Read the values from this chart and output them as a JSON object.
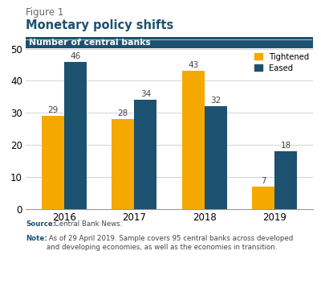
{
  "figure_label": "Figure 1",
  "title": "Monetary policy shifts",
  "chart_label": "Number of central banks",
  "years": [
    "2016",
    "2017",
    "2018",
    "2019"
  ],
  "tightened": [
    29,
    28,
    43,
    7
  ],
  "eased": [
    46,
    34,
    32,
    18
  ],
  "color_tightened": "#F5A800",
  "color_eased": "#1C5170",
  "header_bg": "#1C5170",
  "header_text_color": "#FFFFFF",
  "ylim": [
    0,
    50
  ],
  "yticks": [
    0,
    10,
    20,
    30,
    40,
    50
  ],
  "source_label": "Source:",
  "source_text": " Central Bank News.",
  "note_label": "Note:",
  "note_text": " As of 29 April 2019. Sample covers 95 central banks across developed\nand developing economies, as well as the economies in transition.",
  "legend_tightened": "Tightened",
  "legend_eased": "Eased",
  "bar_width": 0.32,
  "note_label_color": "#1C5170",
  "body_text_color": "#444444",
  "figure_bg": "#FFFFFF",
  "title_color": "#1C5170",
  "figure_label_color": "#666666",
  "grid_color": "#CCCCCC",
  "spine_color": "#999999",
  "label_fontsize": 7.5,
  "tick_fontsize": 8.5,
  "title_fontsize": 10.5,
  "figure_label_fontsize": 8.5,
  "footer_fontsize": 6.2
}
